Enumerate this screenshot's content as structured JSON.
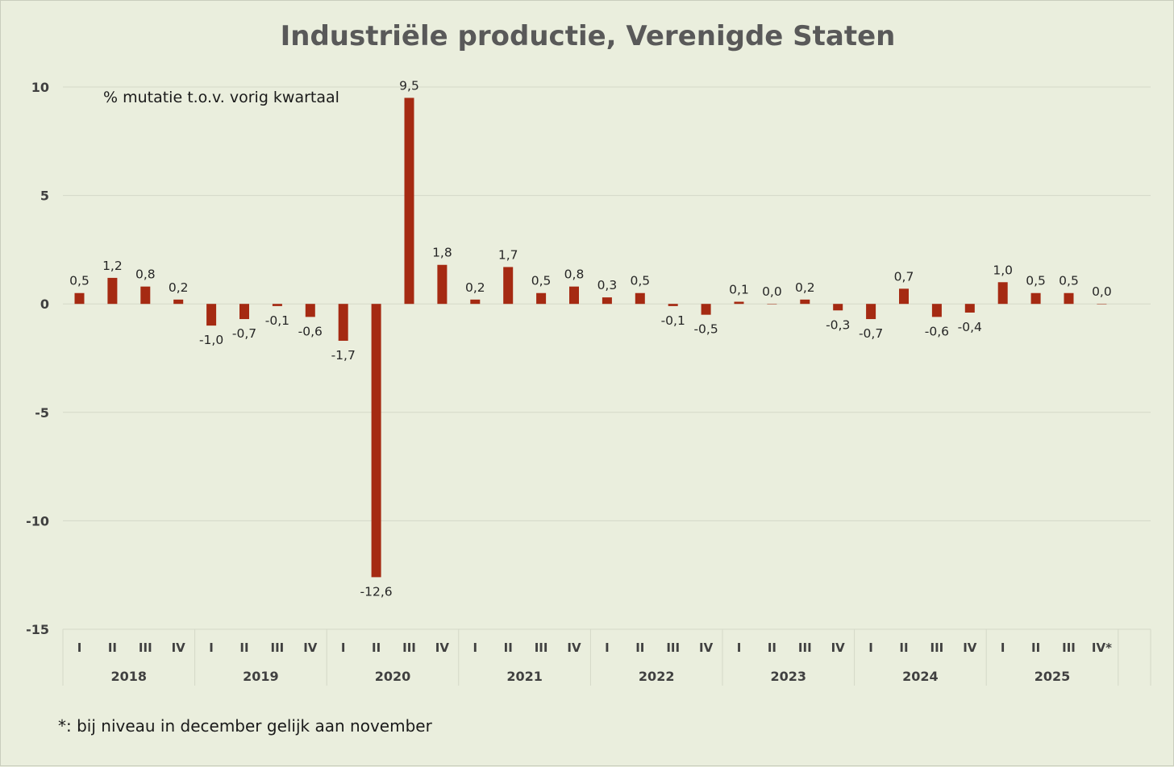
{
  "chart_data": {
    "type": "bar",
    "title": "Industriële productie, Verenigde Staten",
    "subtitle": "% mutatie t.o.v. vorig kwartaal",
    "footnote": "*: bij niveau in december gelijk aan november",
    "ylim": [
      -15,
      10
    ],
    "yticks": [
      10,
      5,
      0,
      -5,
      -10,
      -15
    ],
    "grid": true,
    "bar_color": "#a52a12",
    "years": [
      "2018",
      "2019",
      "2020",
      "2021",
      "2022",
      "2023",
      "2024",
      "2025"
    ],
    "quarters": [
      "I",
      "II",
      "III",
      "IV",
      "I",
      "II",
      "III",
      "IV",
      "I",
      "II",
      "III",
      "IV",
      "I",
      "II",
      "III",
      "IV",
      "I",
      "II",
      "III",
      "IV",
      "I",
      "II",
      "III",
      "IV",
      "I",
      "II",
      "III",
      "IV",
      "I",
      "II",
      "III",
      "IV*"
    ],
    "values": [
      0.5,
      1.2,
      0.8,
      0.2,
      -1.0,
      -0.7,
      -0.1,
      -0.6,
      -1.7,
      -12.6,
      9.5,
      1.8,
      0.2,
      1.7,
      0.5,
      0.8,
      0.3,
      0.5,
      -0.1,
      -0.5,
      0.1,
      0.0,
      0.2,
      -0.3,
      -0.7,
      0.7,
      -0.6,
      -0.4,
      1.0,
      0.5,
      0.5,
      0.0
    ],
    "labels": [
      "0,5",
      "1,2",
      "0,8",
      "0,2",
      "-1,0",
      "-0,7",
      "-0,1",
      "-0,6",
      "-1,7",
      "-12,6",
      "9,5",
      "1,8",
      "0,2",
      "1,7",
      "0,5",
      "0,8",
      "0,3",
      "0,5",
      "-0,1",
      "-0,5",
      "0,1",
      "0,0",
      "0,2",
      "-0,3",
      "-0,7",
      "0,7",
      "-0,6",
      "-0,4",
      "1,0",
      "0,5",
      "0,5",
      "0,0"
    ]
  }
}
